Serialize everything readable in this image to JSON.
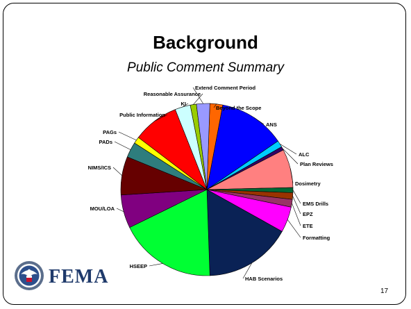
{
  "slide": {
    "title": "Background",
    "subtitle": "Public Comment Summary",
    "page_number": "17",
    "logo_text": "FEMA"
  },
  "chart_data": {
    "type": "pie",
    "categories": [
      "Beyond the Scope",
      "ANS",
      "ALC",
      "Plan Reviews",
      "Dosimetry",
      "EMS Drills",
      "EPZ",
      "ETE",
      "Formatting",
      "HAB Scenarios",
      "HSEEP",
      "MOU/LOA",
      "NIMS/ICS",
      "PADs",
      "PAGs",
      "Public Information",
      "KI",
      "Reasonable Assurance",
      "Extend Comment Period"
    ],
    "values": [
      2.5,
      13,
      1.3,
      0.7,
      7.5,
      1,
      1.3,
      1.5,
      5,
      17,
      19,
      6.5,
      7.5,
      3,
      1.3,
      9,
      3,
      1.2,
      2.6
    ],
    "colors": [
      "#ff6600",
      "#0000ff",
      "#00ccff",
      "#330066",
      "#ff8080",
      "#006633",
      "#993300",
      "#993366",
      "#ff00ff",
      "#0a2255",
      "#00ff33",
      "#800080",
      "#660000",
      "#2e7d7d",
      "#ffff00",
      "#ff0000",
      "#ccffff",
      "#99cc00",
      "#9999ff"
    ],
    "start_angle_deg": 2
  }
}
